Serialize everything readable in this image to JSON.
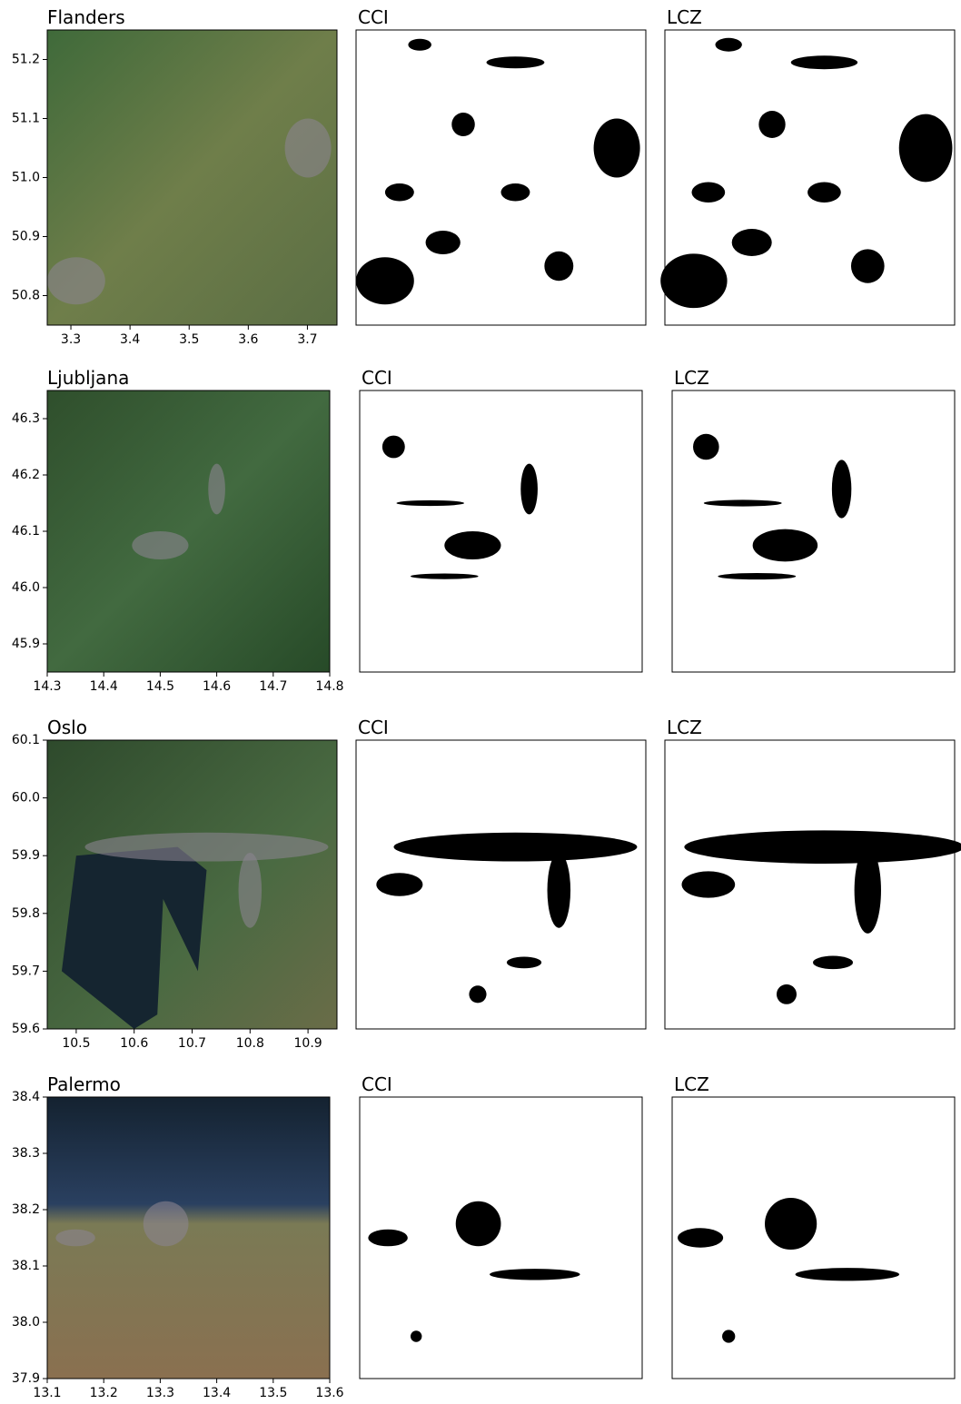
{
  "rows": [
    {
      "satellite": {
        "title": "Flanders",
        "xlim": [
          3.26,
          3.75
        ],
        "ylim": [
          50.75,
          51.25
        ],
        "xticks": [
          3.3,
          3.4,
          3.5,
          3.6,
          3.7
        ],
        "yticks": [
          50.8,
          50.9,
          {
            "value": 51,
            "label": "51.0"
          },
          51.1,
          51.2
        ]
      },
      "cci": {
        "title": "CCI"
      },
      "lcz": {
        "title": "LCZ"
      }
    },
    {
      "satellite": {
        "title": "Ljubljana",
        "xlim": [
          14.3,
          14.8
        ],
        "ylim": [
          45.85,
          46.35
        ],
        "xticks": [
          14.3,
          14.4,
          14.5,
          14.6,
          14.7,
          14.8
        ],
        "yticks": [
          45.9,
          {
            "value": 46,
            "label": "46.0"
          },
          46.1,
          46.2,
          46.3
        ]
      },
      "cci": {
        "title": "CCI"
      },
      "lcz": {
        "title": "LCZ"
      }
    },
    {
      "satellite": {
        "title": "Oslo",
        "xlim": [
          10.45,
          10.95
        ],
        "ylim": [
          59.6,
          60.1
        ],
        "xticks": [
          10.5,
          10.6,
          10.7,
          10.8,
          10.9
        ],
        "yticks": [
          59.6,
          59.7,
          59.8,
          59.9,
          {
            "value": 60,
            "label": "60.0"
          },
          60.1
        ]
      },
      "cci": {
        "title": "CCI"
      },
      "lcz": {
        "title": "LCZ"
      }
    },
    {
      "satellite": {
        "title": "Palermo",
        "xlim": [
          13.1,
          13.6
        ],
        "ylim": [
          37.9,
          38.4
        ],
        "xticks": [
          13.1,
          13.2,
          13.3,
          13.4,
          13.5,
          13.6
        ],
        "yticks": [
          37.9,
          {
            "value": 38,
            "label": "38.0"
          },
          38.1,
          38.2,
          38.3,
          38.4
        ]
      },
      "cci": {
        "title": "CCI"
      },
      "lcz": {
        "title": "LCZ"
      }
    }
  ]
}
